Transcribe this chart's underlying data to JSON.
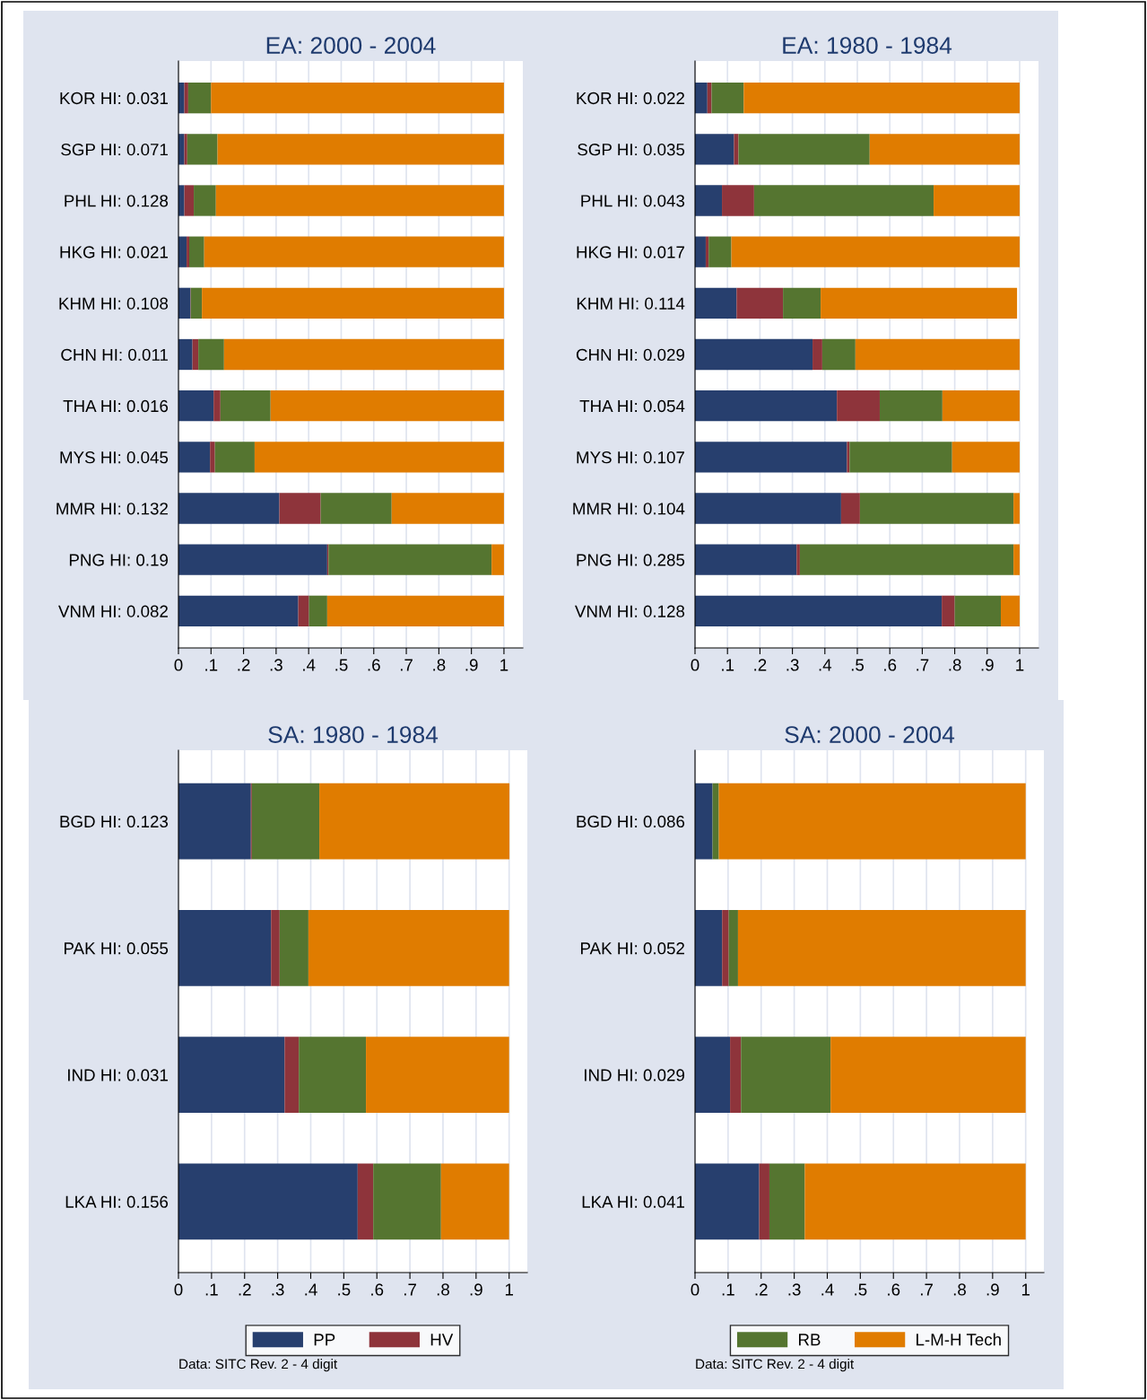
{
  "chart_data": [
    {
      "type": "bar",
      "orientation": "horizontal",
      "stacked": true,
      "title": "EA: 2000 - 2004",
      "grid": "x",
      "legend": false,
      "categories": [
        "KOR HI: 0.031",
        "SGP HI: 0.071",
        "PHL HI: 0.128",
        "HKG HI: 0.021",
        "KHM HI: 0.108",
        "CHN HI: 0.011",
        "THA HI: 0.016",
        "MYS HI: 0.045",
        "MMR HI: 0.132",
        "PNG HI: 0.19",
        "VNM HI: 0.082"
      ],
      "xlim": [
        0,
        1.058
      ],
      "xticks": [
        0,
        {
          "value": 0.1,
          "label": ".1"
        },
        {
          "value": 0.2,
          "label": ".2"
        },
        {
          "value": 0.3,
          "label": ".3"
        },
        {
          "value": 0.4,
          "label": ".4"
        },
        {
          "value": 0.5,
          "label": ".5"
        },
        {
          "value": 0.6,
          "label": ".6"
        },
        {
          "value": 0.7,
          "label": ".7"
        },
        {
          "value": 0.8,
          "label": ".8"
        },
        {
          "value": 0.9,
          "label": ".9"
        },
        1
      ],
      "series": [
        {
          "color": "#273f6e",
          "values": [
            0.018,
            0.018,
            0.018,
            0.025,
            0.037,
            0.043,
            0.108,
            0.097,
            0.31,
            0.457,
            0.368
          ]
        },
        {
          "color": "#8e343b",
          "values": [
            0.012,
            0.009,
            0.029,
            0.008,
            0.001,
            0.018,
            0.021,
            0.015,
            0.127,
            0.004,
            0.033
          ]
        },
        {
          "color": "#557530",
          "values": [
            0.07,
            0.093,
            0.068,
            0.046,
            0.034,
            0.079,
            0.154,
            0.122,
            0.218,
            0.501,
            0.056
          ]
        },
        {
          "color": "#e07c00",
          "values": [
            0.9,
            0.88,
            0.885,
            0.921,
            0.928,
            0.86,
            0.717,
            0.766,
            0.345,
            0.038,
            0.543
          ]
        }
      ]
    },
    {
      "type": "bar",
      "orientation": "horizontal",
      "stacked": true,
      "title": "EA: 1980 - 1984",
      "grid": "x",
      "legend": false,
      "categories": [
        "KOR HI: 0.022",
        "SGP HI: 0.035",
        "PHL HI: 0.043",
        "HKG HI: 0.017",
        "KHM HI: 0.114",
        "CHN HI: 0.029",
        "THA HI: 0.054",
        "MYS HI: 0.107",
        "MMR HI: 0.104",
        "PNG HI: 0.285",
        "VNM HI: 0.128"
      ],
      "xlim": [
        0,
        1.058
      ],
      "xticks": [
        0,
        {
          "value": 0.1,
          "label": ".1"
        },
        {
          "value": 0.2,
          "label": ".2"
        },
        {
          "value": 0.3,
          "label": ".3"
        },
        {
          "value": 0.4,
          "label": ".4"
        },
        {
          "value": 0.5,
          "label": ".5"
        },
        {
          "value": 0.6,
          "label": ".6"
        },
        {
          "value": 0.7,
          "label": ".7"
        },
        {
          "value": 0.8,
          "label": ".8"
        },
        {
          "value": 0.9,
          "label": ".9"
        },
        1
      ],
      "series": [
        {
          "color": "#273f6e",
          "values": [
            0.038,
            0.12,
            0.083,
            0.033,
            0.128,
            0.362,
            0.437,
            0.468,
            0.45,
            0.313,
            0.76
          ]
        },
        {
          "color": "#8e343b",
          "values": [
            0.013,
            0.014,
            0.099,
            0.009,
            0.143,
            0.03,
            0.132,
            0.008,
            0.058,
            0.01,
            0.04
          ]
        },
        {
          "color": "#557530",
          "values": [
            0.099,
            0.404,
            0.553,
            0.07,
            0.116,
            0.102,
            0.193,
            0.316,
            0.473,
            0.658,
            0.142
          ]
        },
        {
          "color": "#e07c00",
          "values": [
            0.85,
            0.462,
            0.265,
            0.888,
            0.605,
            0.506,
            0.238,
            0.208,
            0.019,
            0.019,
            0.058
          ]
        }
      ]
    },
    {
      "type": "bar",
      "orientation": "horizontal",
      "stacked": true,
      "title": "SA: 1980 - 1984",
      "grid": "x",
      "legend": "bottom",
      "categories": [
        "BGD HI: 0.123",
        "PAK HI: 0.055",
        "IND HI: 0.031",
        "LKA HI: 0.156"
      ],
      "xlim": [
        0,
        1.055
      ],
      "xticks": [
        0,
        {
          "value": 0.1,
          "label": ".1"
        },
        {
          "value": 0.2,
          "label": ".2"
        },
        {
          "value": 0.3,
          "label": ".3"
        },
        {
          "value": 0.4,
          "label": ".4"
        },
        {
          "value": 0.5,
          "label": ".5"
        },
        {
          "value": 0.6,
          "label": ".6"
        },
        {
          "value": 0.7,
          "label": ".7"
        },
        {
          "value": 0.8,
          "label": ".8"
        },
        {
          "value": 0.9,
          "label": ".9"
        },
        1
      ],
      "annotations": [
        "Data: SITC Rev. 2 - 4 digit"
      ],
      "series": [
        {
          "name": "PP",
          "color": "#273f6e",
          "values": [
            0.219,
            0.28,
            0.321,
            0.542
          ]
        },
        {
          "name": "HV",
          "color": "#8e343b",
          "values": [
            0.003,
            0.026,
            0.043,
            0.047
          ]
        },
        {
          "color": "#557530",
          "values": [
            0.204,
            0.087,
            0.203,
            0.205
          ]
        },
        {
          "color": "#e07c00",
          "values": [
            0.575,
            0.607,
            0.433,
            0.206
          ]
        }
      ]
    },
    {
      "type": "bar",
      "orientation": "horizontal",
      "stacked": true,
      "title": "SA: 2000 - 2004",
      "grid": "x",
      "legend": "bottom",
      "categories": [
        "BGD HI: 0.086",
        "PAK HI: 0.052",
        "IND HI: 0.029",
        "LKA HI: 0.041"
      ],
      "xlim": [
        0,
        1.055
      ],
      "xticks": [
        0,
        {
          "value": 0.1,
          "label": ".1"
        },
        {
          "value": 0.2,
          "label": ".2"
        },
        {
          "value": 0.3,
          "label": ".3"
        },
        {
          "value": 0.4,
          "label": ".4"
        },
        {
          "value": 0.5,
          "label": ".5"
        },
        {
          "value": 0.6,
          "label": ".6"
        },
        {
          "value": 0.7,
          "label": ".7"
        },
        {
          "value": 0.8,
          "label": ".8"
        },
        {
          "value": 0.9,
          "label": ".9"
        },
        1
      ],
      "annotations": [
        "Data: SITC Rev. 2 - 4 digit"
      ],
      "series": [
        {
          "color": "#273f6e",
          "values": [
            0.053,
            0.082,
            0.106,
            0.194
          ]
        },
        {
          "color": "#8e343b",
          "values": [
            0.0,
            0.02,
            0.033,
            0.031
          ]
        },
        {
          "name": "RB",
          "color": "#557530",
          "values": [
            0.019,
            0.028,
            0.271,
            0.107
          ]
        },
        {
          "name": "L-M-H Tech",
          "color": "#e07c00",
          "values": [
            0.928,
            0.87,
            0.59,
            0.668
          ]
        }
      ]
    }
  ]
}
